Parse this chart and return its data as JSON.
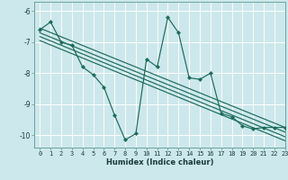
{
  "xlabel": "Humidex (Indice chaleur)",
  "bg_color": "#cce8ec",
  "grid_color": "#ffffff",
  "line_color": "#1a6b5a",
  "xlim": [
    -0.5,
    23
  ],
  "ylim": [
    -10.4,
    -5.7
  ],
  "yticks": [
    -10,
    -9,
    -8,
    -7,
    -6
  ],
  "xticks": [
    0,
    1,
    2,
    3,
    4,
    5,
    6,
    7,
    8,
    9,
    10,
    11,
    12,
    13,
    14,
    15,
    16,
    17,
    18,
    19,
    20,
    21,
    22,
    23
  ],
  "series1_x": [
    0,
    1,
    2,
    3,
    4,
    5,
    6,
    7,
    8,
    9,
    10,
    11,
    12,
    13,
    14,
    15,
    16,
    17,
    18,
    19,
    20,
    21,
    22,
    23
  ],
  "series1_y": [
    -6.6,
    -6.35,
    -7.0,
    -7.1,
    -7.8,
    -8.05,
    -8.45,
    -9.35,
    -10.15,
    -9.95,
    -7.55,
    -7.8,
    -6.2,
    -6.7,
    -8.15,
    -8.2,
    -8.0,
    -9.3,
    -9.4,
    -9.7,
    -9.8,
    -9.75,
    -9.75,
    -9.75
  ],
  "regression_lines": [
    {
      "x0": 0,
      "y0": -6.55,
      "x1": 23,
      "y1": -9.75
    },
    {
      "x0": 0,
      "y0": -6.7,
      "x1": 23,
      "y1": -9.9
    },
    {
      "x0": 0,
      "y0": -6.82,
      "x1": 23,
      "y1": -10.05
    },
    {
      "x0": 0,
      "y0": -6.95,
      "x1": 23,
      "y1": -10.18
    }
  ],
  "tick_fontsize": 5.0,
  "xlabel_fontsize": 6.0,
  "marker_size": 2.2
}
